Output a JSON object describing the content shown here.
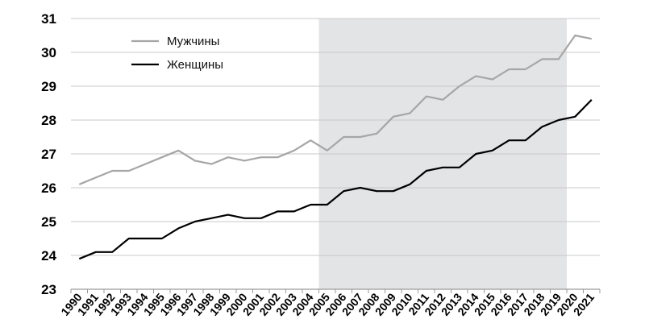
{
  "chart_data": {
    "type": "line",
    "x": [
      "1990",
      "1991",
      "1992",
      "1993",
      "1994",
      "1995",
      "1996",
      "1997",
      "1998",
      "1999",
      "2000",
      "2001",
      "2002",
      "2003",
      "2004",
      "2005",
      "2006",
      "2007",
      "2008",
      "2009",
      "2010",
      "2011",
      "2012",
      "2013",
      "2014",
      "2015",
      "2016",
      "2017",
      "2018",
      "2019",
      "2020",
      "2021"
    ],
    "series": [
      {
        "name": "Мужчины",
        "color": "#a6a6a6",
        "values": [
          26.1,
          26.3,
          26.5,
          26.5,
          26.7,
          26.9,
          27.1,
          26.8,
          26.7,
          26.9,
          26.8,
          26.9,
          26.9,
          27.1,
          27.4,
          27.1,
          27.5,
          27.5,
          27.6,
          28.1,
          28.2,
          28.7,
          28.6,
          29.0,
          29.3,
          29.2,
          29.5,
          29.5,
          29.8,
          29.8,
          30.5,
          30.4
        ]
      },
      {
        "name": "Женщины",
        "color": "#000000",
        "values": [
          23.9,
          24.1,
          24.1,
          24.5,
          24.5,
          24.5,
          24.8,
          25.0,
          25.1,
          25.2,
          25.1,
          25.1,
          25.3,
          25.3,
          25.5,
          25.5,
          25.9,
          26.0,
          25.9,
          25.9,
          26.1,
          26.5,
          26.6,
          26.6,
          27.0,
          27.1,
          27.4,
          27.4,
          27.8,
          28.0,
          28.1,
          28.6
        ]
      }
    ],
    "ylim": [
      23,
      31
    ],
    "yticks": [
      "23",
      "24",
      "25",
      "26",
      "27",
      "28",
      "29",
      "30",
      "31"
    ],
    "shaded_band": {
      "from": "2005",
      "to": "2020",
      "color": "#e3e4e6"
    },
    "grid": true,
    "legend_position": "top-left",
    "title": "",
    "xlabel": "",
    "ylabel": ""
  }
}
